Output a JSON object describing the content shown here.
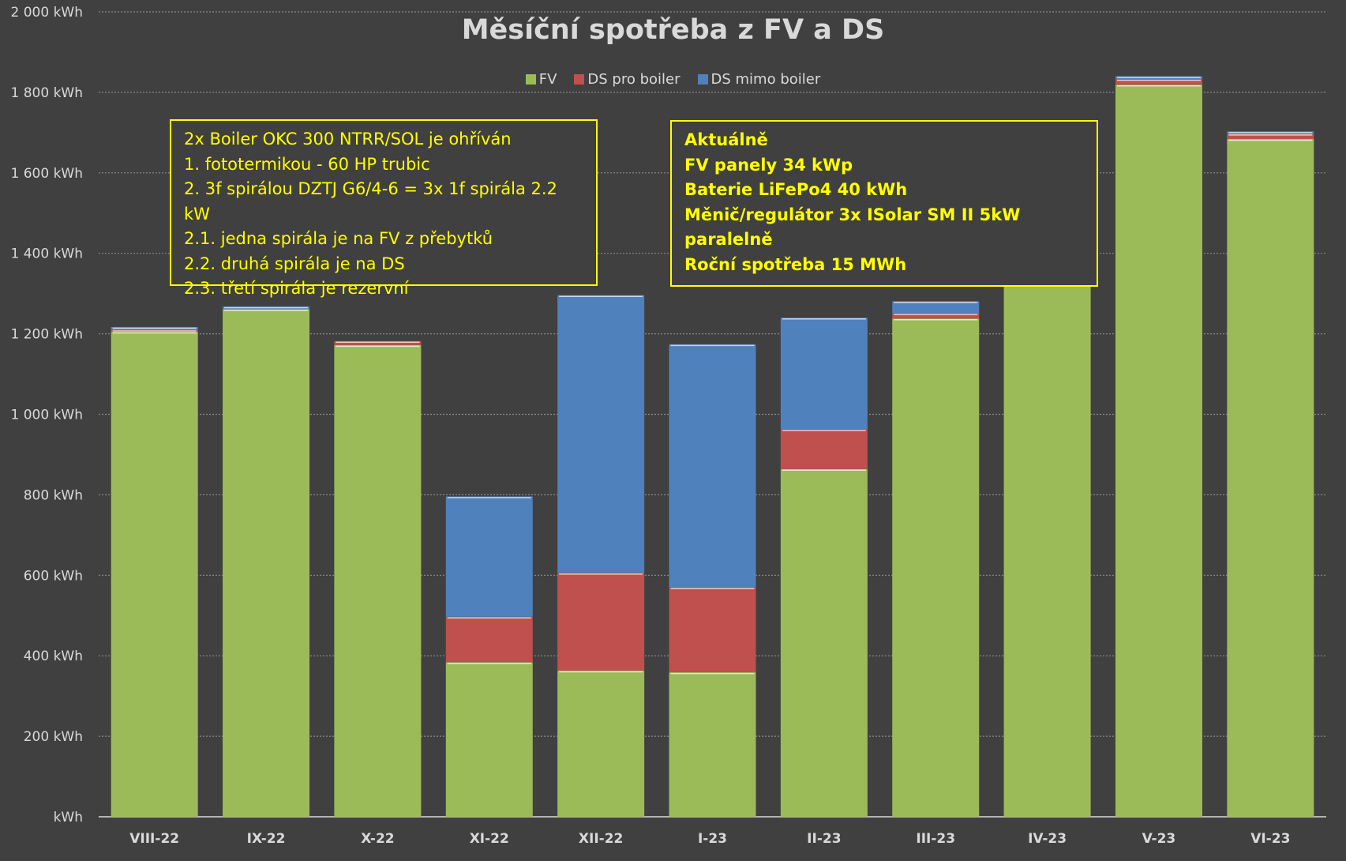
{
  "chart_data": {
    "type": "bar",
    "stacked": true,
    "title": "Měsíční spotřeba z FV a DS",
    "xlabel": "",
    "ylabel": "",
    "ylim": [
      0,
      2000
    ],
    "y_ticks": [
      0,
      200,
      400,
      600,
      800,
      1000,
      1200,
      1400,
      1600,
      1800,
      2000
    ],
    "y_tick_labels": [
      "kWh",
      "200 kWh",
      "400 kWh",
      "600 kWh",
      "800 kWh",
      "1 000 kWh",
      "1 200 kWh",
      "1 400 kWh",
      "1 600 kWh",
      "1 800 kWh",
      "2 000 kWh"
    ],
    "grid": true,
    "legend_position": "top-center",
    "categories": [
      "VIII-22",
      "IX-22",
      "X-22",
      "XI-22",
      "XII-22",
      "I-23",
      "II-23",
      "III-23",
      "IV-23",
      "V-23",
      "VI-23"
    ],
    "series": [
      {
        "name": "FV",
        "color": "#9bbb59",
        "values": [
          1205,
          1261,
          1172,
          384,
          363,
          359,
          864,
          1238,
          1480,
          1819,
          1684
        ]
      },
      {
        "name": "DS pro boiler",
        "color": "#c0504d",
        "values": [
          5,
          0,
          10,
          113,
          243,
          211,
          99,
          13,
          10,
          14,
          13
        ]
      },
      {
        "name": "DS mimo boiler",
        "color": "#4f81bd",
        "values": [
          7,
          7,
          0,
          299,
          690,
          604,
          277,
          30,
          8,
          7,
          6
        ]
      }
    ]
  },
  "notes": {
    "left": [
      "2x Boiler OKC 300 NTRR/SOL je ohříván",
      "1. fototermikou - 60 HP trubic",
      "2. 3f spirálou DZTJ G6/4-6 = 3x 1f spirála 2.2 kW",
      "2.1. jedna spirála je na FV z přebytků",
      "2.2. druhá spirála je na DS",
      "2.3. třetí spirála je rezervní"
    ],
    "right": [
      "Aktuálně",
      "FV panely 34 kWp",
      "Baterie LiFePo4 40 kWh",
      "Měnič/regulátor 3x ISolar SM II 5kW paralelně",
      "Roční spotřeba 15 MWh"
    ]
  }
}
